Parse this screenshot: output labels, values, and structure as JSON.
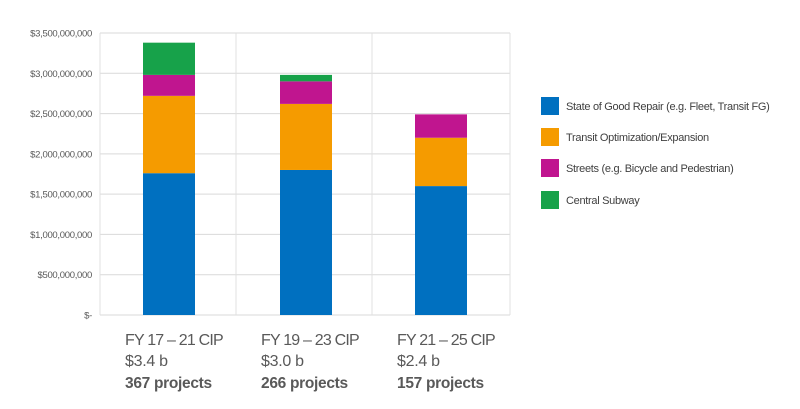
{
  "chart_data": {
    "type": "bar",
    "stacked": true,
    "categories": [
      "FY 17 – 21 CIP",
      "FY 19 – 23 CIP",
      "FY 21 – 25 CIP"
    ],
    "category_totals": [
      "$3.4 b",
      "$3.0 b",
      "$2.4 b"
    ],
    "category_projects": [
      "367 projects",
      "266 projects",
      "157 projects"
    ],
    "series": [
      {
        "name": "State of Good Repair (e.g. Fleet, Transit FG)",
        "color": "#0070C0",
        "values": [
          1760000000,
          1800000000,
          1600000000
        ]
      },
      {
        "name": "Transit Optimization/Expansion",
        "color": "#F59B00",
        "values": [
          960000000,
          820000000,
          600000000
        ]
      },
      {
        "name": "Streets (e.g. Bicycle and Pedestrian)",
        "color": "#C0158F",
        "values": [
          260000000,
          280000000,
          290000000
        ]
      },
      {
        "name": "Central Subway",
        "color": "#17A24A",
        "values": [
          400000000,
          80000000,
          0
        ]
      }
    ],
    "y_ticks": [
      "$-",
      "$500,000,000",
      "$1,000,000,000",
      "$1,500,000,000",
      "$2,000,000,000",
      "$2,500,000,000",
      "$3,000,000,000",
      "$3,500,000,000"
    ],
    "ylim": [
      0,
      3500000000
    ],
    "grid": true,
    "legend_position": "right",
    "title": "",
    "xlabel": "",
    "ylabel": ""
  }
}
